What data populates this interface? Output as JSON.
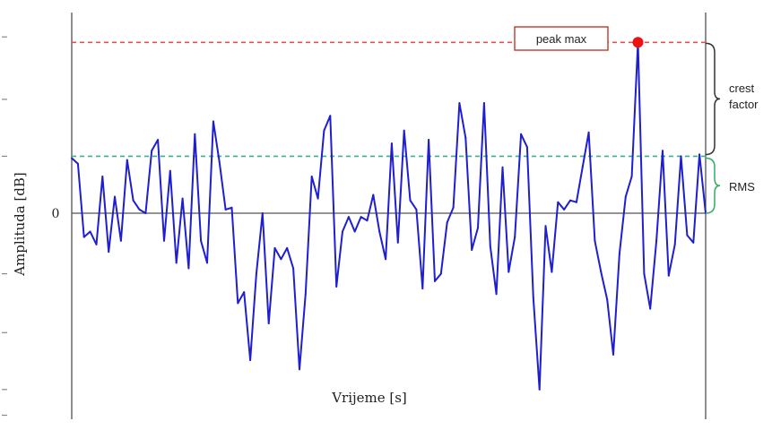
{
  "chart_data": {
    "type": "line",
    "title": "",
    "xlabel": "Vrijeme [s]",
    "ylabel": "Amplituda [dB]",
    "ytick_labels": [
      {
        "value": 0,
        "label": "0"
      }
    ],
    "ylim": [
      -1.15,
      1.05
    ],
    "grid": false,
    "colors": {
      "signal": "#1f1fcf",
      "peak_line": "#e05050",
      "rms_line": "#36b08e",
      "zero_line": "#555555",
      "peak_marker": "#ee1111",
      "crest_brace": "#333333",
      "rms_brace": "#2fae62",
      "peak_box_border": "#c0392b"
    },
    "series": [
      {
        "values": [
          0.3,
          0.27,
          -0.13,
          -0.1,
          -0.17,
          0.2,
          -0.21,
          0.09,
          -0.15,
          0.29,
          0.07,
          0.02,
          0.0,
          0.34,
          0.4,
          -0.15,
          0.23,
          -0.27,
          0.08,
          -0.3,
          0.43,
          -0.15,
          -0.27,
          0.5,
          0.28,
          0.02,
          0.03,
          -0.49,
          -0.43,
          -0.8,
          -0.33,
          0.0,
          -0.6,
          -0.19,
          -0.25,
          -0.19,
          -0.3,
          -0.85,
          -0.44,
          0.2,
          0.08,
          0.45,
          0.53,
          -0.4,
          -0.1,
          -0.02,
          -0.1,
          -0.02,
          -0.04,
          0.1,
          -0.1,
          -0.25,
          0.38,
          -0.16,
          0.45,
          0.07,
          0.02,
          -0.41,
          0.4,
          -0.37,
          -0.33,
          -0.05,
          0.03,
          0.6,
          0.41,
          -0.2,
          -0.08,
          0.6,
          -0.18,
          -0.44,
          0.25,
          -0.32,
          -0.13,
          0.43,
          0.36,
          -0.46,
          -0.96,
          -0.07,
          -0.32,
          0.06,
          0.02,
          0.07,
          0.06,
          0.25,
          0.44,
          -0.15,
          -0.32,
          -0.47,
          -0.77,
          -0.22,
          0.09,
          0.2,
          0.93,
          -0.33,
          -0.52,
          -0.15,
          0.34,
          -0.34,
          -0.17,
          0.31,
          -0.12,
          -0.16,
          0.32,
          0.0
        ]
      }
    ],
    "reference_lines": [
      {
        "name": "peak-max-line",
        "value": 0.93,
        "style": "dashed"
      },
      {
        "name": "rms-line",
        "value": 0.31,
        "style": "dashed"
      },
      {
        "name": "zero-line",
        "value": 0,
        "style": "solid"
      }
    ],
    "annotations": {
      "peak_label": "peak max",
      "crest_label_line1": "crest",
      "crest_label_line2": "factor",
      "rms_label": "RMS"
    }
  }
}
